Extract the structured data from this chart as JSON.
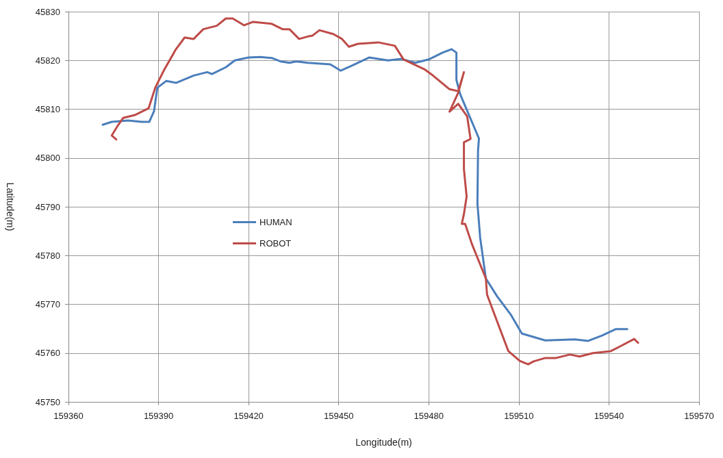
{
  "chart_data": {
    "type": "line",
    "xlabel": "Longitude(m)",
    "ylabel": "Latitude(m)",
    "xlim": [
      159360,
      159570
    ],
    "xticks": [
      159360,
      159390,
      159420,
      159450,
      159480,
      159510,
      159540,
      159570
    ],
    "ylim": [
      45750,
      45830
    ],
    "yticks": [
      45750,
      45760,
      45770,
      45780,
      45790,
      45800,
      45810,
      45820,
      45830
    ],
    "grid": true,
    "legend": "center left",
    "marker": "none",
    "line_style": "solid",
    "series": [
      {
        "name": "HUMAN",
        "color": "#4a7ebb",
        "x": [
          159371.4,
          159374.4,
          159379.8,
          159384.4,
          159386.9,
          159388.5,
          159389.6,
          159392.6,
          159395.8,
          159401.7,
          159406.2,
          159407.8,
          159412.4,
          159415.4,
          159419.9,
          159423.8,
          159427.7,
          159430.6,
          159433.6,
          159435.9,
          159439.7,
          159447.2,
          159450.7,
          159455.0,
          159460.2,
          159466.4,
          159470.9,
          159475.5,
          159480.0,
          159484.6,
          159487.6,
          159489.2,
          159489.2,
          159490.5,
          159496.7,
          159496.4,
          159496.2,
          159497.1,
          159499.0,
          159502.8,
          159507.4,
          159511.0,
          159518.8,
          159528.6,
          159533.1,
          159537.7,
          159542.2,
          159546.1
        ],
        "values": [
          45806.8,
          45807.4,
          45807.7,
          45807.4,
          45807.4,
          45809.6,
          45814.4,
          45815.8,
          45815.4,
          45816.9,
          45817.6,
          45817.2,
          45818.6,
          45820.0,
          45820.6,
          45820.7,
          45820.5,
          45819.8,
          45819.5,
          45819.8,
          45819.5,
          45819.2,
          45817.9,
          45819.1,
          45820.6,
          45820.0,
          45820.3,
          45819.5,
          45820.2,
          45821.6,
          45822.3,
          45821.6,
          45816.0,
          45813.0,
          45804.0,
          45801.5,
          45790.7,
          45783.7,
          45775.3,
          45771.6,
          45767.8,
          45764.0,
          45762.6,
          45762.8,
          45762.5,
          45763.6,
          45764.9,
          45764.9
        ]
      },
      {
        "name": "ROBOT",
        "color": "#be4b48",
        "x": [
          159375.9,
          159374.4,
          159376.6,
          159378.2,
          159382.1,
          159386.7,
          159388.9,
          159391.9,
          159395.8,
          159398.7,
          159401.7,
          159404.9,
          159409.4,
          159412.4,
          159414.7,
          159418.5,
          159421.5,
          159427.7,
          159431.3,
          159433.6,
          159436.8,
          159439.7,
          159441.3,
          159443.6,
          159448.2,
          159451.1,
          159453.4,
          159456.4,
          159463.2,
          159468.7,
          159471.6,
          159478.5,
          159481.4,
          159486.9,
          159489.8,
          159491.7,
          159489.8,
          159486.9,
          159489.8,
          159492.8,
          159493.9,
          159491.7,
          159491.7,
          159492.6,
          159491.7,
          159491.0,
          159492.1,
          159494.4,
          159499.0,
          159499.4,
          159501.7,
          159506.5,
          159510.3,
          159513.1,
          159514.9,
          159518.8,
          159522.4,
          159527.0,
          159530.2,
          159534.7,
          159540.6,
          159543.8,
          159548.4,
          159549.7
        ],
        "values": [
          45803.8,
          45804.6,
          45806.8,
          45808.2,
          45808.8,
          45810.2,
          45814.4,
          45818.1,
          45822.3,
          45824.7,
          45824.4,
          45826.4,
          45827.1,
          45828.6,
          45828.6,
          45827.2,
          45827.9,
          45827.5,
          45826.4,
          45826.4,
          45824.4,
          45824.9,
          45825.1,
          45826.2,
          45825.4,
          45824.4,
          45822.8,
          45823.4,
          45823.7,
          45823.0,
          45820.2,
          45818.2,
          45816.9,
          45814.1,
          45813.7,
          45817.6,
          45813.4,
          45809.5,
          45811.1,
          45808.5,
          45803.9,
          45803.2,
          45797.7,
          45792.1,
          45788.5,
          45786.5,
          45786.5,
          45782.3,
          45775.3,
          45772.0,
          45768.2,
          45760.4,
          45758.4,
          45757.7,
          45758.3,
          45759.0,
          45759.0,
          45759.7,
          45759.3,
          45760.0,
          45760.4,
          45761.4,
          45762.9,
          45762.1
        ]
      }
    ]
  }
}
